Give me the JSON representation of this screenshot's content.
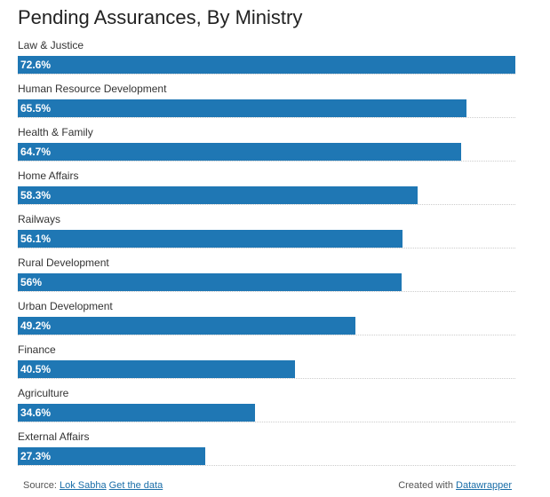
{
  "chart_data": {
    "type": "bar",
    "title": "Pending Assurances, By Ministry",
    "categories": [
      "Law & Justice",
      "Human Resource Development",
      "Health & Family",
      "Home Affairs",
      "Railways",
      "Rural Development",
      "Urban Development",
      "Finance",
      "Agriculture",
      "External Affairs"
    ],
    "values": [
      72.6,
      65.5,
      64.7,
      58.3,
      56.1,
      56,
      49.2,
      40.5,
      34.6,
      27.3
    ],
    "value_labels": [
      "72.6%",
      "65.5%",
      "64.7%",
      "58.3%",
      "56.1%",
      "56%",
      "49.2%",
      "40.5%",
      "34.6%",
      "27.3%"
    ],
    "orientation": "horizontal",
    "xlim": [
      0,
      72.6
    ],
    "bar_color": "#1f77b4",
    "grid": false
  },
  "footer": {
    "source_prefix": "Source:",
    "source_link": "Lok Sabha",
    "data_link": "Get the data",
    "credit_prefix": "Created with",
    "credit_link": "Datawrapper"
  },
  "colors": {
    "bar": "#1f77b4",
    "link": "#1a6ea8"
  }
}
